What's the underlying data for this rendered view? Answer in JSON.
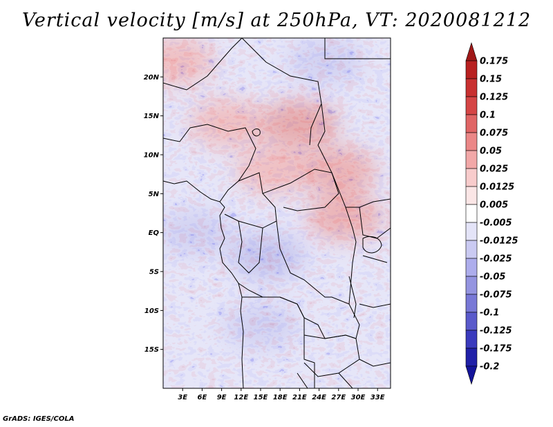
{
  "title": "Vertical velocity [m/s] at 250hPa, VT: 2020081212",
  "credit": "GrADS: IGES/COLA",
  "map": {
    "lon_range": [
      0,
      35
    ],
    "lat_range": [
      -20,
      25
    ],
    "y_ticks": [
      "20N",
      "15N",
      "10N",
      "5N",
      "EQ",
      "5S",
      "10S",
      "15S"
    ],
    "y_tick_values": [
      20,
      15,
      10,
      5,
      0,
      -5,
      -10,
      -15
    ],
    "x_ticks": [
      "3E",
      "6E",
      "9E",
      "12E",
      "15E",
      "18E",
      "21E",
      "24E",
      "27E",
      "30E",
      "33E"
    ],
    "x_tick_values": [
      3,
      6,
      9,
      12,
      15,
      18,
      21,
      24,
      27,
      30,
      33
    ],
    "features": [
      {
        "name": "ascent-band-sahel",
        "lon": 10,
        "lat": 14,
        "strength": 0.6
      },
      {
        "name": "ascent-core-chad",
        "lon": 21,
        "lat": 14,
        "strength": 0.9
      },
      {
        "name": "ascent-cameroon",
        "lon": 17,
        "lat": 8,
        "strength": 0.6
      },
      {
        "name": "ascent-south-sudan",
        "lon": 27,
        "lat": 8,
        "strength": 0.7
      },
      {
        "name": "ascent-east-africa",
        "lon": 28,
        "lat": 2,
        "strength": 0.7
      },
      {
        "name": "ascent-niger-north",
        "lon": 2,
        "lat": 22,
        "strength": 0.6
      },
      {
        "name": "descent-gulf-guinea",
        "lon": 5,
        "lat": 0,
        "strength": -0.5
      },
      {
        "name": "descent-congo",
        "lon": 16,
        "lat": -3,
        "strength": -0.6
      },
      {
        "name": "descent-angola",
        "lon": 15,
        "lat": -12,
        "strength": -0.55
      },
      {
        "name": "descent-libya",
        "lon": 25,
        "lat": 22,
        "strength": -0.45
      }
    ]
  },
  "colorbar": {
    "labels": [
      "0.175",
      "0.15",
      "0.125",
      "0.1",
      "0.075",
      "0.05",
      "0.025",
      "0.0125",
      "0.005",
      "-0.005",
      "-0.0125",
      "-0.025",
      "-0.05",
      "-0.075",
      "-0.1",
      "-0.125",
      "-0.175",
      "-0.2"
    ],
    "colors": [
      "#a01818",
      "#b82020",
      "#c83030",
      "#d54545",
      "#e06565",
      "#eb8787",
      "#f2a8a8",
      "#f8cccc",
      "#fbe6e6",
      "#ffffff",
      "#e4e4f8",
      "#cacaf2",
      "#adadec",
      "#9494e0",
      "#7878d6",
      "#5a5acb",
      "#3a3abd",
      "#2020a8",
      "#14149a"
    ]
  }
}
